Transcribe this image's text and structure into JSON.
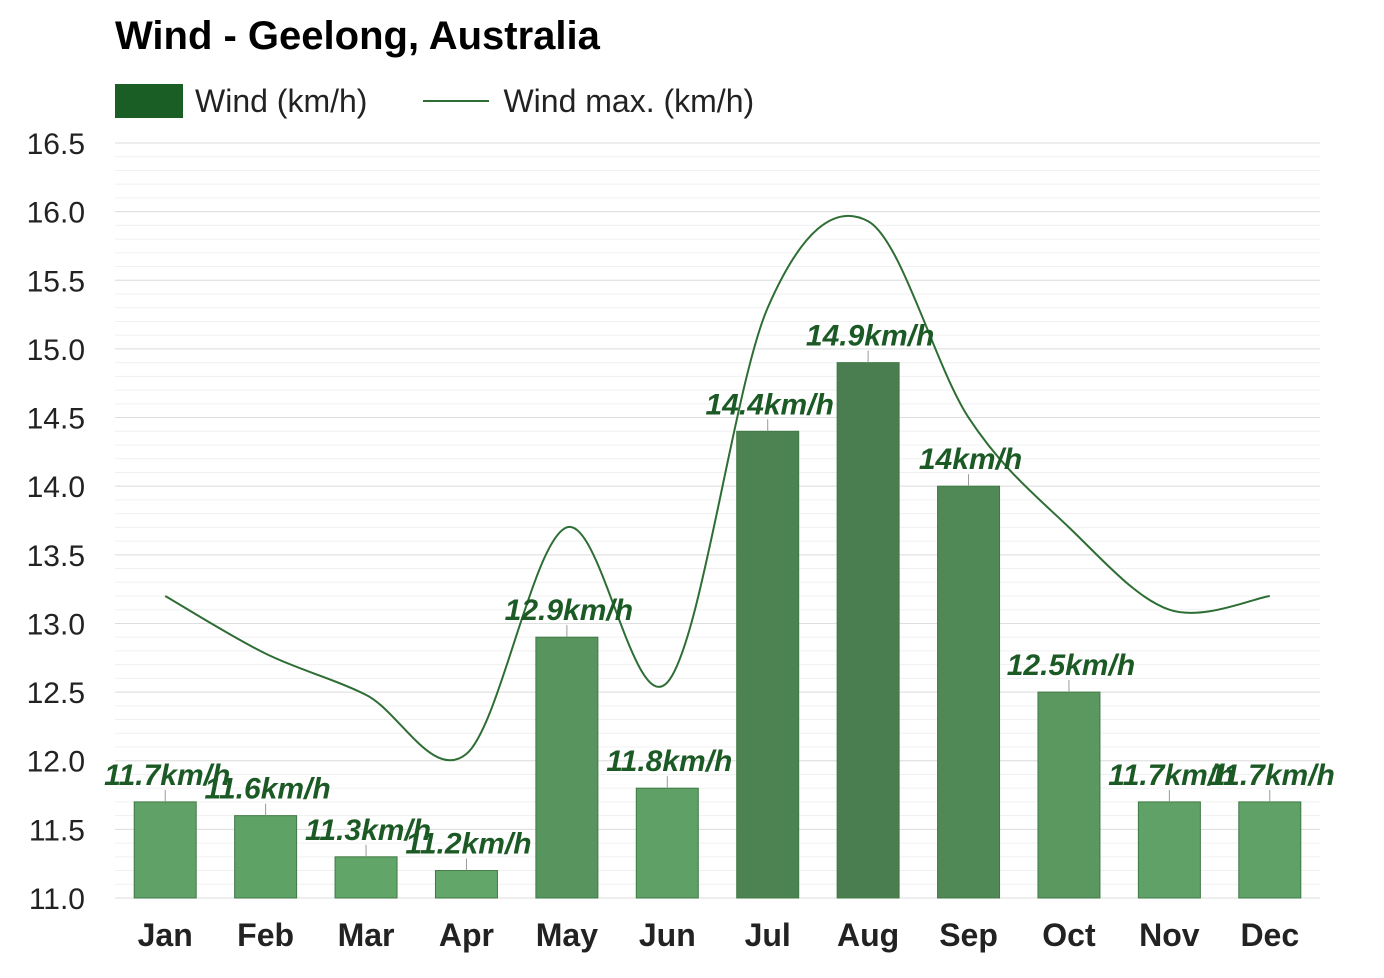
{
  "chart_data": {
    "type": "bar",
    "title": "Wind - Geelong, Australia",
    "categories": [
      "Jan",
      "Feb",
      "Mar",
      "Apr",
      "May",
      "Jun",
      "Jul",
      "Aug",
      "Sep",
      "Oct",
      "Nov",
      "Dec"
    ],
    "series": [
      {
        "name": "Wind (km/h)",
        "type": "bar",
        "values": [
          11.7,
          11.6,
          11.3,
          11.2,
          12.9,
          11.8,
          14.4,
          14.9,
          14.0,
          12.5,
          11.7,
          11.7
        ],
        "data_labels": [
          "11.7km/h",
          "11.6km/h",
          "11.3km/h",
          "11.2km/h",
          "12.9km/h",
          "11.8km/h",
          "14.4km/h",
          "14.9km/h",
          "14km/h",
          "12.5km/h",
          "11.7km/h",
          "11.7km/h"
        ]
      },
      {
        "name": "Wind max. (km/h)",
        "type": "line",
        "values": [
          13.2,
          12.78,
          12.48,
          12.05,
          13.7,
          12.57,
          15.3,
          15.93,
          14.5,
          13.7,
          13.1,
          13.2
        ]
      }
    ],
    "ylim": [
      11.0,
      16.5
    ],
    "yticks": [
      "11.0",
      "11.5",
      "12.0",
      "12.5",
      "13.0",
      "13.5",
      "14.0",
      "14.5",
      "15.0",
      "15.5",
      "16.0",
      "16.5"
    ],
    "grid": true,
    "legend_position": "top-left",
    "colors": {
      "bar_low": "#62a669",
      "bar_high": "#4a7e50",
      "line": "#2e6e34",
      "legend_bar": "#1a5e26",
      "label": "#1c5a25"
    }
  }
}
